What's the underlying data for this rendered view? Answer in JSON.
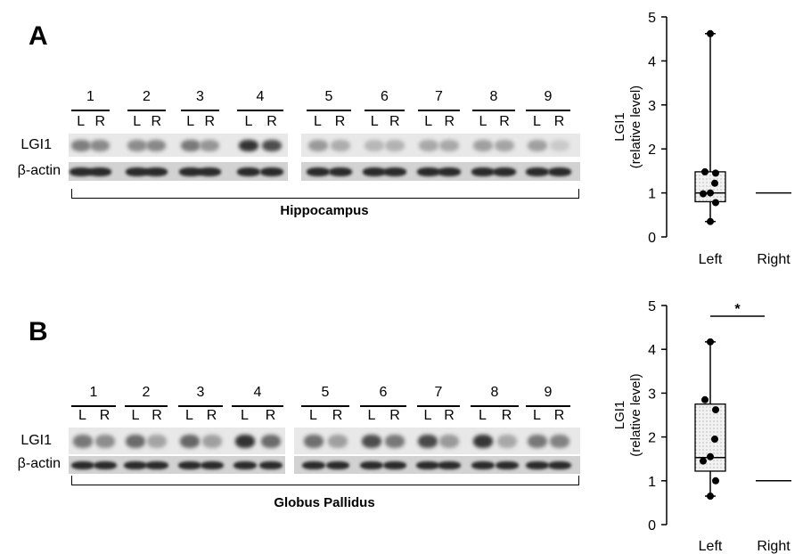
{
  "panels": [
    {
      "letter": "A",
      "region": "Hippocampus",
      "protein_label": "LGI1",
      "control_label": "β-actin",
      "lanes": [
        {
          "num": "1",
          "left": "L",
          "right": "R",
          "lgi1": [
            0.52,
            0.46
          ]
        },
        {
          "num": "2",
          "left": "L",
          "right": "R",
          "lgi1": [
            0.45,
            0.47
          ]
        },
        {
          "num": "3",
          "left": "L",
          "right": "R",
          "lgi1": [
            0.55,
            0.4
          ]
        },
        {
          "num": "4",
          "left": "L",
          "right": "R",
          "lgi1": [
            0.92,
            0.78
          ]
        },
        {
          "num": "5",
          "left": "L",
          "right": "R",
          "lgi1": [
            0.38,
            0.28
          ]
        },
        {
          "num": "6",
          "left": "L",
          "right": "R",
          "lgi1": [
            0.22,
            0.25
          ]
        },
        {
          "num": "7",
          "left": "L",
          "right": "R",
          "lgi1": [
            0.3,
            0.3
          ]
        },
        {
          "num": "8",
          "left": "L",
          "right": "R",
          "lgi1": [
            0.35,
            0.32
          ]
        },
        {
          "num": "9",
          "left": "L",
          "right": "R",
          "lgi1": [
            0.35,
            0.12
          ]
        }
      ]
    },
    {
      "letter": "B",
      "region": "Globus Pallidus",
      "protein_label": "LGI1",
      "control_label": "β-actin",
      "lanes": [
        {
          "num": "1",
          "left": "L",
          "right": "R",
          "lgi1": [
            0.55,
            0.45
          ]
        },
        {
          "num": "2",
          "left": "L",
          "right": "R",
          "lgi1": [
            0.62,
            0.32
          ]
        },
        {
          "num": "3",
          "left": "L",
          "right": "R",
          "lgi1": [
            0.65,
            0.35
          ]
        },
        {
          "num": "4",
          "left": "L",
          "right": "R",
          "lgi1": [
            0.92,
            0.62
          ]
        },
        {
          "num": "5",
          "left": "L",
          "right": "R",
          "lgi1": [
            0.6,
            0.35
          ]
        },
        {
          "num": "6",
          "left": "L",
          "right": "R",
          "lgi1": [
            0.78,
            0.55
          ]
        },
        {
          "num": "7",
          "left": "L",
          "right": "R",
          "lgi1": [
            0.8,
            0.38
          ]
        },
        {
          "num": "8",
          "left": "L",
          "right": "R",
          "lgi1": [
            0.9,
            0.3
          ]
        },
        {
          "num": "9",
          "left": "L",
          "right": "R",
          "lgi1": [
            0.55,
            0.5
          ]
        }
      ]
    }
  ],
  "chart_data": [
    {
      "type": "box",
      "ylabel": "LGI1\n(relative level)",
      "ylim": [
        0,
        5
      ],
      "yticks": [
        "0",
        "1",
        "2",
        "3",
        "4",
        "5"
      ],
      "categories": [
        "Left",
        "Right"
      ],
      "box": {
        "min": 0.35,
        "q1": 0.8,
        "median": 1.0,
        "q3": 1.48,
        "max": 4.62
      },
      "points": [
        4.62,
        1.48,
        1.45,
        1.22,
        1.0,
        0.98,
        0.78,
        0.35
      ],
      "right_value": 1.0,
      "significance": ""
    },
    {
      "type": "box",
      "ylabel": "LGI1\n(relative level)",
      "ylim": [
        0,
        5
      ],
      "yticks": [
        "0",
        "1",
        "2",
        "3",
        "4",
        "5"
      ],
      "categories": [
        "Left",
        "Right"
      ],
      "box": {
        "min": 0.65,
        "q1": 1.22,
        "median": 1.53,
        "q3": 2.75,
        "max": 4.17
      },
      "points": [
        4.17,
        2.85,
        2.62,
        1.95,
        1.55,
        1.45,
        1.0,
        0.65
      ],
      "right_value": 1.0,
      "significance": "*"
    }
  ]
}
